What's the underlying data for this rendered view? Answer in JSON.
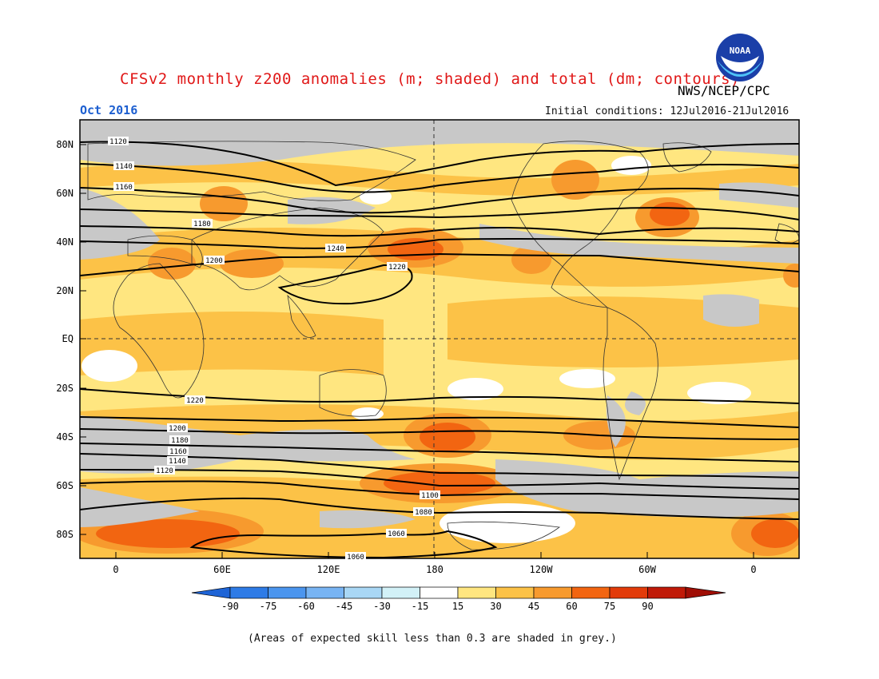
{
  "title": "CFSv2 monthly z200 anomalies (m; shaded) and total (dm; contours)",
  "credit": "NWS/NCEP/CPC",
  "logo_text": "NOAA",
  "valid_month": "Oct 2016",
  "initial_conditions": "Initial conditions: 12Jul2016-21Jul2016",
  "footnote": "(Areas of expected skill less than 0.3 are shaded in grey.)",
  "lat_labels": [
    "80N",
    "60N",
    "40N",
    "20N",
    "EQ",
    "20S",
    "40S",
    "60S",
    "80S"
  ],
  "lon_labels": [
    "0",
    "60E",
    "120E",
    "180",
    "120W",
    "60W",
    "0"
  ],
  "colorbar": {
    "ticks": [
      "-90",
      "-75",
      "-60",
      "-45",
      "-30",
      "-15",
      "15",
      "30",
      "45",
      "60",
      "75",
      "90"
    ],
    "colors": [
      "#1e64d6",
      "#2e7be6",
      "#4b95ee",
      "#78b4f3",
      "#a9d7f5",
      "#d2f1f7",
      "#ffffff",
      "#ffe680",
      "#fcc247",
      "#f79a2e",
      "#f26511",
      "#e23b0a",
      "#c01a08",
      "#a00e05"
    ]
  },
  "legend_colors": {
    "grey_low_skill": "#c8c8c8",
    "pos_15_30": "#ffe680",
    "pos_30_45": "#fcc247",
    "pos_45_60": "#f79a2e",
    "pos_60_75": "#f26511",
    "contour": "#000000"
  },
  "contour_labels": [
    "1120",
    "1140",
    "1160",
    "1180",
    "1200",
    "1220",
    "1240",
    "1220",
    "1200",
    "1180",
    "1160",
    "1140",
    "1120",
    "1100",
    "1080",
    "1060",
    "1060"
  ]
}
